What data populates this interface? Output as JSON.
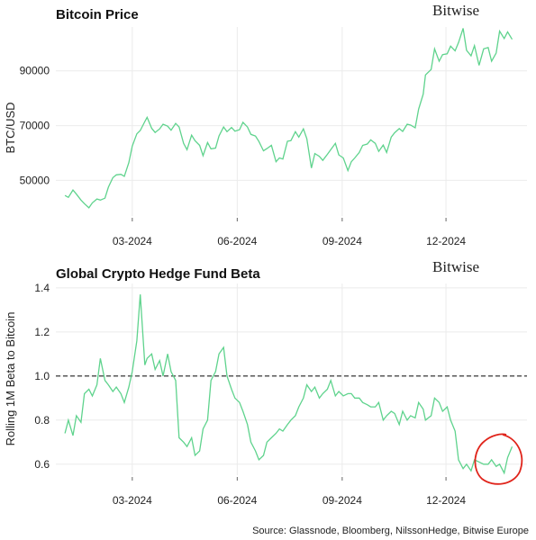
{
  "source_note": "Source: Glassnode, Bloomberg, NilssonHedge, Bitwise Europe",
  "brand_label": "Bitwise",
  "chart_data": [
    {
      "type": "line",
      "title": "Bitcoin Price",
      "ylabel": "BTC/USD",
      "xlabel": "",
      "x_ticks": [
        "03-2024",
        "06-2024",
        "09-2024",
        "12-2024"
      ],
      "y_ticks": [
        "50000",
        "70000",
        "90000"
      ],
      "ylim": [
        37000,
        106000
      ],
      "grid": true,
      "color": "#5fd38d",
      "series": [
        {
          "x": [
            "2024-01-02",
            "2024-01-05",
            "2024-01-09",
            "2024-01-12",
            "2024-01-16",
            "2024-01-19",
            "2024-01-23",
            "2024-01-26",
            "2024-01-30",
            "2024-02-02",
            "2024-02-06",
            "2024-02-09",
            "2024-02-13",
            "2024-02-16",
            "2024-02-20",
            "2024-02-23",
            "2024-02-27",
            "2024-03-01",
            "2024-03-05",
            "2024-03-08",
            "2024-03-12",
            "2024-03-14",
            "2024-03-18",
            "2024-03-21",
            "2024-03-25",
            "2024-03-28",
            "2024-04-01",
            "2024-04-04",
            "2024-04-08",
            "2024-04-11",
            "2024-04-15",
            "2024-04-18",
            "2024-04-22",
            "2024-04-25",
            "2024-04-29",
            "2024-05-02",
            "2024-05-06",
            "2024-05-09",
            "2024-05-13",
            "2024-05-16",
            "2024-05-20",
            "2024-05-23",
            "2024-05-27",
            "2024-05-30",
            "2024-06-03",
            "2024-06-06",
            "2024-06-10",
            "2024-06-13",
            "2024-06-17",
            "2024-06-20",
            "2024-06-24",
            "2024-06-27",
            "2024-07-01",
            "2024-07-05",
            "2024-07-08",
            "2024-07-11",
            "2024-07-15",
            "2024-07-18",
            "2024-07-22",
            "2024-07-25",
            "2024-07-29",
            "2024-08-01",
            "2024-08-05",
            "2024-08-08",
            "2024-08-12",
            "2024-08-15",
            "2024-08-19",
            "2024-08-22",
            "2024-08-26",
            "2024-08-29",
            "2024-09-02",
            "2024-09-06",
            "2024-09-09",
            "2024-09-12",
            "2024-09-16",
            "2024-09-19",
            "2024-09-23",
            "2024-09-26",
            "2024-09-30",
            "2024-10-03",
            "2024-10-07",
            "2024-10-10",
            "2024-10-14",
            "2024-10-17",
            "2024-10-21",
            "2024-10-24",
            "2024-10-28",
            "2024-10-31",
            "2024-11-04",
            "2024-11-07",
            "2024-11-11",
            "2024-11-13",
            "2024-11-18",
            "2024-11-21",
            "2024-11-25",
            "2024-11-28",
            "2024-12-02",
            "2024-12-05",
            "2024-12-09",
            "2024-12-12",
            "2024-12-16",
            "2024-12-19",
            "2024-12-23",
            "2024-12-26",
            "2024-12-30",
            "2025-01-03",
            "2025-01-07",
            "2025-01-10",
            "2025-01-14",
            "2025-01-17",
            "2025-01-21",
            "2025-01-24",
            "2025-01-28"
          ],
          "values": [
            44500,
            43800,
            46500,
            45000,
            42800,
            41500,
            40000,
            41800,
            43200,
            42800,
            43500,
            47500,
            51000,
            52000,
            52200,
            51500,
            56500,
            62500,
            67000,
            68200,
            71500,
            73000,
            69000,
            67500,
            68800,
            70500,
            69800,
            68300,
            70800,
            69500,
            63500,
            61200,
            66500,
            64500,
            62800,
            59000,
            63800,
            61500,
            61800,
            66200,
            69500,
            67800,
            69300,
            68000,
            68500,
            71200,
            69500,
            66800,
            66200,
            64200,
            60800,
            61600,
            62800,
            56800,
            58200,
            57800,
            64300,
            64500,
            67800,
            65800,
            68800,
            65200,
            54500,
            59800,
            58800,
            57300,
            59500,
            61200,
            63500,
            59300,
            58200,
            53600,
            56800,
            58200,
            60200,
            62800,
            63300,
            64800,
            63500,
            60600,
            62900,
            60200,
            65800,
            67400,
            68900,
            67900,
            70500,
            70200,
            69200,
            76000,
            81500,
            88500,
            90500,
            98000,
            93500,
            95900,
            96200,
            99000,
            97300,
            100300,
            105500,
            97500,
            95500,
            99200,
            92000,
            98000,
            98500,
            93500,
            96500,
            104500,
            101800,
            104200,
            101500
          ]
        }
      ]
    },
    {
      "type": "line",
      "title": "Global Crypto Hedge Fund Beta",
      "ylabel": "Rolling 1M Beta to Bitcoin",
      "xlabel": "",
      "x_ticks": [
        "03-2024",
        "06-2024",
        "09-2024",
        "12-2024"
      ],
      "y_ticks": [
        "0.6",
        "0.8",
        "1.0",
        "1.2",
        "1.4"
      ],
      "ylim": [
        0.55,
        1.42
      ],
      "grid": true,
      "reference_line": 1.0,
      "color": "#5fd38d",
      "annotation": "red hand-drawn circle around the most recent values",
      "series": [
        {
          "x": [
            "2024-01-02",
            "2024-01-05",
            "2024-01-09",
            "2024-01-12",
            "2024-01-16",
            "2024-01-19",
            "2024-01-23",
            "2024-01-26",
            "2024-01-30",
            "2024-02-02",
            "2024-02-06",
            "2024-02-09",
            "2024-02-13",
            "2024-02-16",
            "2024-02-20",
            "2024-02-23",
            "2024-02-27",
            "2024-03-01",
            "2024-03-05",
            "2024-03-08",
            "2024-03-12",
            "2024-03-14",
            "2024-03-18",
            "2024-03-21",
            "2024-03-25",
            "2024-03-28",
            "2024-04-01",
            "2024-04-04",
            "2024-04-08",
            "2024-04-11",
            "2024-04-15",
            "2024-04-18",
            "2024-04-22",
            "2024-04-25",
            "2024-04-29",
            "2024-05-02",
            "2024-05-06",
            "2024-05-09",
            "2024-05-13",
            "2024-05-16",
            "2024-05-20",
            "2024-05-23",
            "2024-05-27",
            "2024-05-30",
            "2024-06-03",
            "2024-06-06",
            "2024-06-10",
            "2024-06-13",
            "2024-06-17",
            "2024-06-20",
            "2024-06-24",
            "2024-06-27",
            "2024-07-01",
            "2024-07-05",
            "2024-07-08",
            "2024-07-11",
            "2024-07-15",
            "2024-07-18",
            "2024-07-22",
            "2024-07-25",
            "2024-07-29",
            "2024-08-01",
            "2024-08-05",
            "2024-08-08",
            "2024-08-12",
            "2024-08-15",
            "2024-08-19",
            "2024-08-22",
            "2024-08-26",
            "2024-08-29",
            "2024-09-02",
            "2024-09-06",
            "2024-09-09",
            "2024-09-12",
            "2024-09-16",
            "2024-09-19",
            "2024-09-23",
            "2024-09-26",
            "2024-09-30",
            "2024-10-03",
            "2024-10-07",
            "2024-10-10",
            "2024-10-14",
            "2024-10-17",
            "2024-10-21",
            "2024-10-24",
            "2024-10-28",
            "2024-10-31",
            "2024-11-04",
            "2024-11-07",
            "2024-11-11",
            "2024-11-13",
            "2024-11-18",
            "2024-11-21",
            "2024-11-25",
            "2024-11-28",
            "2024-12-02",
            "2024-12-05",
            "2024-12-09",
            "2024-12-12",
            "2024-12-16",
            "2024-12-19",
            "2024-12-23",
            "2024-12-26",
            "2024-12-30",
            "2025-01-03",
            "2025-01-07",
            "2025-01-10",
            "2025-01-14",
            "2025-01-17",
            "2025-01-21",
            "2025-01-24",
            "2025-01-28"
          ],
          "values": [
            0.74,
            0.8,
            0.73,
            0.82,
            0.79,
            0.92,
            0.94,
            0.91,
            0.96,
            1.08,
            0.98,
            0.96,
            0.93,
            0.95,
            0.92,
            0.88,
            0.95,
            1.02,
            1.16,
            1.37,
            1.05,
            1.08,
            1.1,
            1.03,
            1.07,
            1.0,
            1.1,
            1.02,
            0.98,
            0.72,
            0.7,
            0.68,
            0.72,
            0.64,
            0.66,
            0.76,
            0.8,
            0.98,
            1.02,
            1.1,
            1.13,
            1.0,
            0.94,
            0.9,
            0.88,
            0.84,
            0.78,
            0.7,
            0.66,
            0.62,
            0.64,
            0.7,
            0.72,
            0.74,
            0.76,
            0.75,
            0.78,
            0.8,
            0.82,
            0.86,
            0.9,
            0.96,
            0.93,
            0.95,
            0.9,
            0.92,
            0.94,
            0.98,
            0.91,
            0.93,
            0.91,
            0.92,
            0.92,
            0.9,
            0.9,
            0.88,
            0.87,
            0.86,
            0.86,
            0.88,
            0.8,
            0.82,
            0.84,
            0.83,
            0.78,
            0.84,
            0.8,
            0.82,
            0.81,
            0.88,
            0.85,
            0.8,
            0.82,
            0.9,
            0.88,
            0.84,
            0.86,
            0.8,
            0.75,
            0.62,
            0.58,
            0.6,
            0.57,
            0.62,
            0.61,
            0.6,
            0.6,
            0.62,
            0.59,
            0.6,
            0.56,
            0.63,
            0.68
          ]
        }
      ]
    }
  ]
}
